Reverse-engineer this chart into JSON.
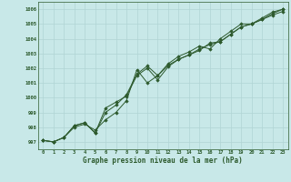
{
  "title": "Graphe pression niveau de la mer (hPa)",
  "background_color": "#c8e8e8",
  "grid_color": "#b0d4d4",
  "line_color": "#2d5a2d",
  "marker_color": "#2d5a2d",
  "xlim": [
    -0.5,
    23.5
  ],
  "ylim": [
    996.5,
    1006.5
  ],
  "yticks": [
    997,
    998,
    999,
    1000,
    1001,
    1002,
    1003,
    1004,
    1005,
    1006
  ],
  "xticks": [
    0,
    1,
    2,
    3,
    4,
    5,
    6,
    7,
    8,
    9,
    10,
    11,
    12,
    13,
    14,
    15,
    16,
    17,
    18,
    19,
    20,
    21,
    22,
    23
  ],
  "series1_y": [
    997.1,
    997.0,
    997.3,
    998.0,
    998.2,
    997.8,
    998.5,
    999.0,
    999.8,
    1001.9,
    1001.0,
    1001.5,
    1002.3,
    1002.8,
    1003.1,
    1003.5,
    1003.3,
    1004.0,
    1004.5,
    1005.0,
    1005.0,
    1005.4,
    1005.8,
    1006.0
  ],
  "series2_y": [
    997.1,
    997.0,
    997.3,
    998.1,
    998.3,
    997.6,
    999.0,
    999.5,
    1000.2,
    1001.6,
    1002.15,
    1001.5,
    1002.2,
    1002.6,
    1002.9,
    1003.3,
    1003.6,
    1003.8,
    1004.3,
    1004.8,
    1005.0,
    1005.3,
    1005.6,
    1005.85
  ],
  "series3_y": [
    997.1,
    997.0,
    997.3,
    998.1,
    998.3,
    997.6,
    999.3,
    999.7,
    1000.1,
    1001.5,
    1002.0,
    1001.2,
    1002.1,
    1002.6,
    1002.9,
    1003.2,
    1003.7,
    1003.8,
    1004.3,
    1004.8,
    1005.0,
    1005.3,
    1005.7,
    1006.0
  ]
}
